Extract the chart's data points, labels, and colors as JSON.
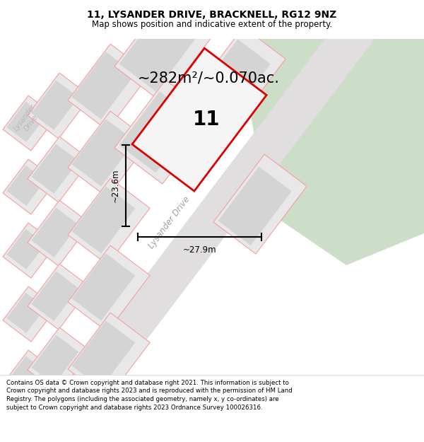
{
  "title": "11, LYSANDER DRIVE, BRACKNELL, RG12 9NZ",
  "subtitle": "Map shows position and indicative extent of the property.",
  "area_text": "~282m²/~0.070ac.",
  "label_11": "11",
  "dim_width": "~27.9m",
  "dim_height": "~23.6m",
  "street_label": "Lysander Drive",
  "left_street_label": "Lysander\nDrive",
  "bg_color": "#f2f2f2",
  "green_fill": "#cddec8",
  "plot_fill": "#e8e8e8",
  "building_fill": "#d4d4d4",
  "road_fill": "#e2e2e2",
  "red_outline": "#dd0000",
  "pink_line": "#f5a0a0",
  "footer_text": "Contains OS data © Crown copyright and database right 2021. This information is subject to Crown copyright and database rights 2023 and is reproduced with the permission of HM Land Registry. The polygons (including the associated geometry, namely x, y co-ordinates) are subject to Crown copyright and database rights 2023 Ordnance Survey 100026316."
}
